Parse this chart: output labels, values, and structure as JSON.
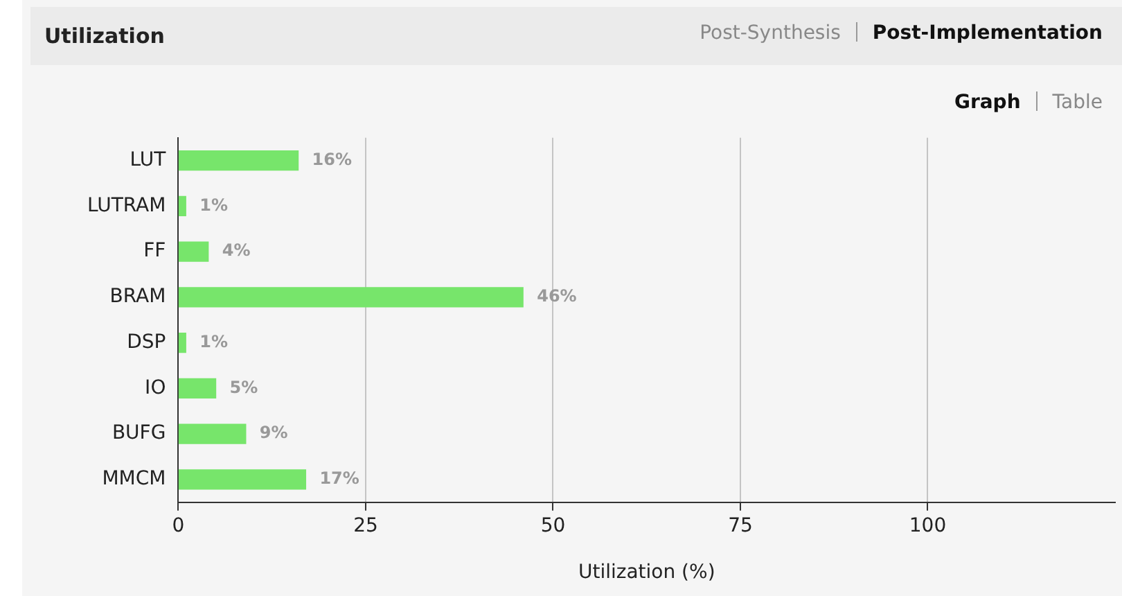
{
  "chart_data": {
    "type": "bar",
    "orientation": "horizontal",
    "title": "Utilization",
    "annotations": [
      "Post-Synthesis",
      "Post-Implementation",
      "Graph",
      "Table"
    ],
    "xlabel": "Utilization (%)",
    "categories": [
      "LUT",
      "LUTRAM",
      "FF",
      "BRAM",
      "DSP",
      "IO",
      "BUFG",
      "MMCM"
    ],
    "values": [
      16,
      1,
      4,
      46,
      1,
      5,
      9,
      17
    ],
    "value_labels": [
      "16%",
      "1%",
      "4%",
      "46%",
      "1%",
      "5%",
      "9%",
      "17%"
    ],
    "color": "#77e56b",
    "xlim": [
      0,
      125
    ],
    "xticks": [
      0,
      25,
      50,
      75,
      100
    ],
    "grid": "x",
    "legend": false
  }
}
